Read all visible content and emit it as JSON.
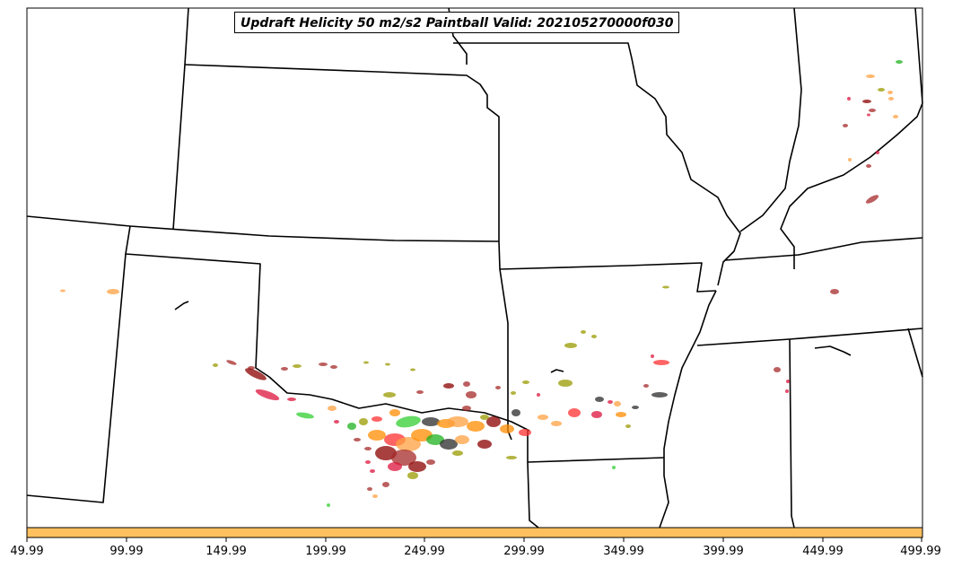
{
  "title": "Updraft Helicity 50 m2/s2 Paintball Valid: 202105270000f030",
  "colorbar": {
    "ticks": [
      "49.99",
      "99.99",
      "149.99",
      "199.99",
      "249.99",
      "299.99",
      "349.99",
      "399.99",
      "449.99",
      "499.99"
    ],
    "color": "#ffc05f"
  },
  "member_colors": [
    "#dc143c",
    "#8b0000",
    "#ff8c00",
    "#ffa040",
    "#9a9a00",
    "#1fb21f",
    "#2b2b2b",
    "#a52a2a",
    "#ff3030",
    "#32cd32"
  ],
  "map": {
    "border_color": "#000000",
    "background": "#ffffff"
  }
}
